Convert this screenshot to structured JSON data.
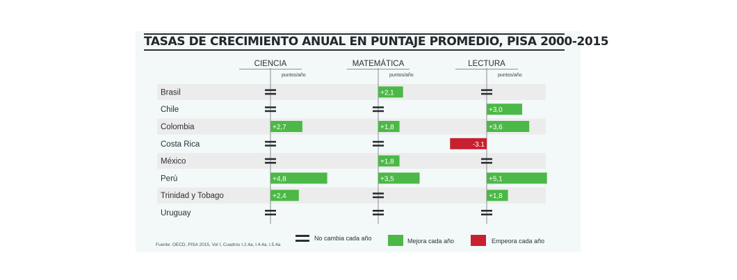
{
  "chart_data": {
    "type": "bar",
    "title": "TASAS DE CRECIMIENTO ANUAL EN PUNTAJE PROMEDIO, PISA 2000-2015",
    "unit_label": "puntos/año",
    "categories": [
      "Brasil",
      "Chile",
      "Colombia",
      "Costa Rica",
      "México",
      "Perú",
      "Trinidad y Tobago",
      "Uruguay"
    ],
    "series": [
      {
        "name": "CIENCIA",
        "values": [
          0,
          0,
          2.7,
          0,
          0,
          4.8,
          2.4,
          0
        ],
        "labels": [
          "",
          "",
          "+2,7",
          "",
          "",
          "+4,8",
          "+2,4",
          ""
        ],
        "status": [
          "no_change",
          "no_change",
          "improves",
          "no_change",
          "no_change",
          "improves",
          "improves",
          "no_change"
        ]
      },
      {
        "name": "MATEMÁTICA",
        "values": [
          2.1,
          0,
          1.8,
          0,
          1.8,
          3.5,
          0,
          0
        ],
        "labels": [
          "+2,1",
          "",
          "+1,8",
          "",
          "+1,8",
          "+3,5",
          "",
          ""
        ],
        "status": [
          "improves",
          "no_change",
          "improves",
          "no_change",
          "improves",
          "improves",
          "no_change",
          "no_change"
        ]
      },
      {
        "name": "LECTURA",
        "values": [
          0,
          3.0,
          3.6,
          -3.1,
          0,
          5.1,
          1.8,
          0
        ],
        "labels": [
          "",
          "+3,0",
          "+3,6",
          "-3.1",
          "",
          "+5,1",
          "+1,8",
          ""
        ],
        "status": [
          "no_change",
          "improves",
          "improves",
          "worsens",
          "no_change",
          "improves",
          "improves",
          "no_change"
        ]
      }
    ],
    "legend": [
      {
        "key": "no_change",
        "label": "No cambia cada año",
        "icon": "equals-icon"
      },
      {
        "key": "improves",
        "label": "Mejora cada año",
        "color": "#4cb847"
      },
      {
        "key": "worsens",
        "label": "Empeora cada año",
        "color": "#c8202f"
      }
    ],
    "legend_position": "bottom",
    "source": "Fuente: OECD, PISA 2015, Vol I, Cuadros I.2.4a, I.4.4a, I.5.4a",
    "colors": {
      "improves": "#4cb847",
      "worsens": "#c8202f",
      "no_change": "#2b2f33",
      "stripe": "#ececec",
      "axis": "#8a8f93"
    }
  }
}
